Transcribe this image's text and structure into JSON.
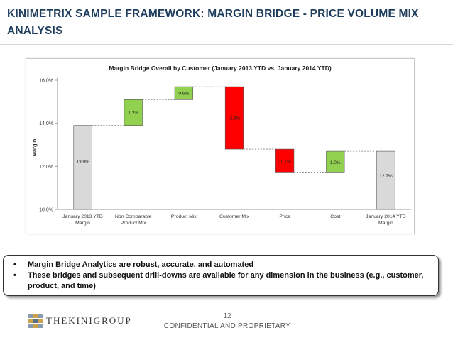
{
  "slide": {
    "title": "KINIMETRIX SAMPLE FRAMEWORK: MARGIN BRIDGE - PRICE VOLUME MIX ANALYSIS",
    "bullets": [
      "Margin Bridge Analytics are robust, accurate, and automated",
      "These bridges and subsequent drill-downs are available for any dimension in the business (e.g., customer, product, and time)"
    ],
    "bullet_glyph": "•",
    "footer": {
      "logo_text": "THEKINIGROUP",
      "logo_icon": "kini-group-grid-logo",
      "page_number": "12",
      "confidential": "CONFIDENTIAL AND PROPRIETARY"
    }
  },
  "chart_data": {
    "type": "bar",
    "subtype": "waterfall",
    "title": "Margin Bridge Overall by Customer (January 2013 YTD vs. January 2014 YTD)",
    "ylabel": "Margin",
    "xlabel": "",
    "ylim": [
      10.0,
      16.0
    ],
    "yticks": [
      "10.0%",
      "12.0%",
      "14.0%",
      "16.0%"
    ],
    "ytick_values": [
      10,
      12,
      14,
      16
    ],
    "grid": false,
    "legend": "none",
    "categories": [
      "January 2013 YTD Margin",
      "Non Comparable Product Mix",
      "Product Mix",
      "Customer Mix",
      "Price",
      "Cost",
      "January 2014 YTD Margin"
    ],
    "category_lines": [
      [
        "January 2013 YTD",
        "Margin"
      ],
      [
        "Non Comparable",
        "Product Mix"
      ],
      [
        "Product Mix"
      ],
      [
        "Customer Mix"
      ],
      [
        "Price"
      ],
      [
        "Cost"
      ],
      [
        "January 2014 YTD",
        "Margin"
      ]
    ],
    "bars": [
      {
        "kind": "total",
        "start": 10.0,
        "end": 13.9,
        "label": "13.9%"
      },
      {
        "kind": "increase",
        "start": 13.9,
        "end": 15.1,
        "label": "1.2%"
      },
      {
        "kind": "increase",
        "start": 15.1,
        "end": 15.7,
        "label": "0.6%"
      },
      {
        "kind": "decrease",
        "start": 15.7,
        "end": 12.8,
        "label": "-2.9%"
      },
      {
        "kind": "decrease",
        "start": 12.8,
        "end": 11.7,
        "label": "-1.1%"
      },
      {
        "kind": "increase",
        "start": 11.7,
        "end": 12.7,
        "label": "1.0%"
      },
      {
        "kind": "total",
        "start": 10.0,
        "end": 12.7,
        "label": "12.7%"
      }
    ],
    "colors": {
      "total": "#d9d9d9",
      "increase": "#92d050",
      "decrease": "#ff0000",
      "connector": "#7f7f7f",
      "axis": "#9a9a9a"
    }
  }
}
